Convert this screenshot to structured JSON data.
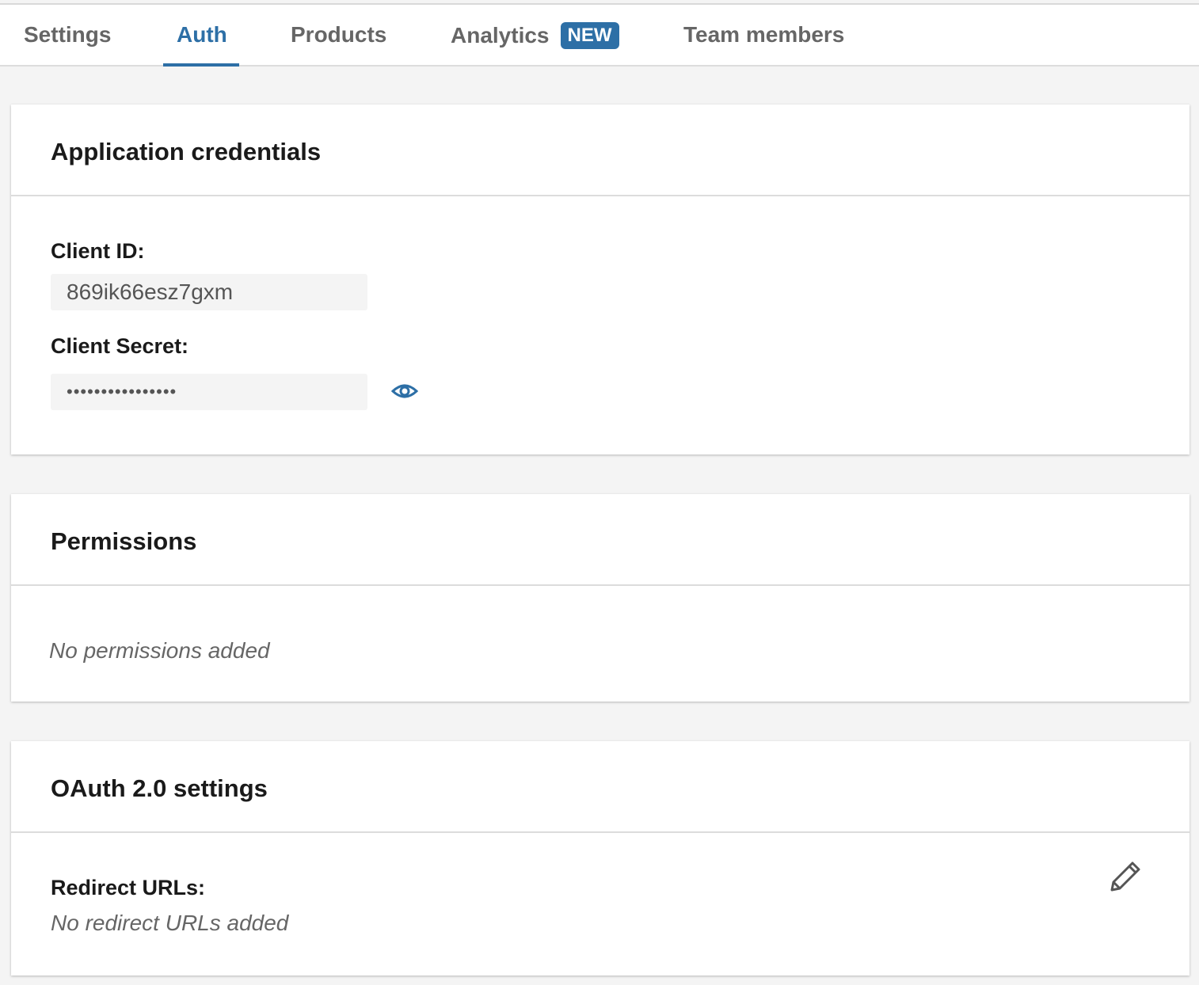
{
  "tabs": [
    {
      "label": "Settings",
      "active": false
    },
    {
      "label": "Auth",
      "active": true
    },
    {
      "label": "Products",
      "active": false
    },
    {
      "label": "Analytics",
      "badge": "NEW",
      "active": false
    },
    {
      "label": "Team members",
      "active": false
    }
  ],
  "credentials": {
    "title": "Application credentials",
    "client_id_label": "Client ID:",
    "client_id": "869ik66esz7gxm",
    "client_secret_label": "Client Secret:",
    "client_secret_masked": "••••••••••••••••",
    "reveal_icon": "eye-icon"
  },
  "permissions": {
    "title": "Permissions",
    "empty": "No permissions added"
  },
  "oauth": {
    "title": "OAuth 2.0 settings",
    "redirect_label": "Redirect URLs:",
    "redirect_empty": "No redirect URLs added",
    "edit_icon": "pencil-icon"
  },
  "colors": {
    "accent": "#2d6fa6",
    "background": "#f4f4f4"
  }
}
